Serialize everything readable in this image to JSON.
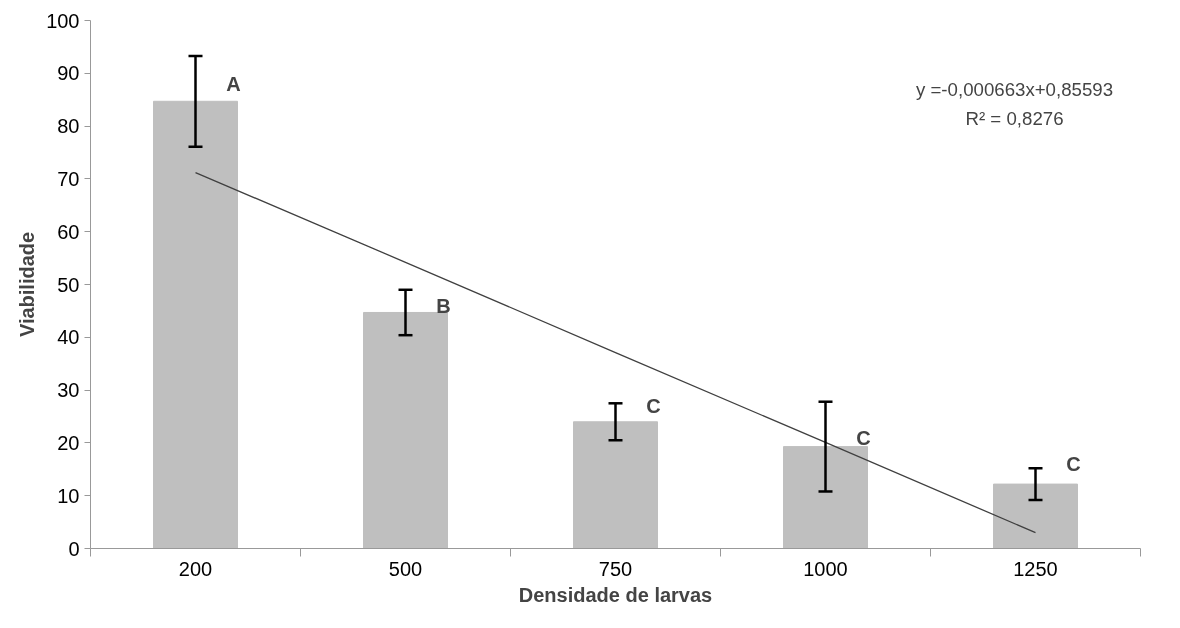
{
  "chart_data": {
    "type": "bar",
    "xlabel": "Densidade de larvas",
    "ylabel": "Viabilidade",
    "categories": [
      "200",
      "500",
      "750",
      "1000",
      "1250"
    ],
    "series": [
      {
        "color": "#bfbfbf",
        "values": [
          84.7,
          44.7,
          24,
          19.3,
          12.2
        ],
        "errors": [
          8.6,
          4.3,
          3.5,
          8.5,
          3
        ]
      },
      {
        "type": "line",
        "color": "#404040",
        "values": [
          71.2,
          54.2,
          37.1,
          20.1,
          3
        ]
      }
    ],
    "ylim": [
      0,
      100
    ],
    "yticks": [
      0,
      10,
      20,
      30,
      40,
      50,
      60,
      70,
      80,
      90,
      100
    ],
    "grid": false,
    "annotations": [
      {
        "text": "A",
        "x": "200",
        "y": 88
      },
      {
        "text": "B",
        "x": "500",
        "y": 46
      },
      {
        "text": "C",
        "x": "750",
        "y": 27
      },
      {
        "text": "C",
        "x": "1000",
        "y": 21
      },
      {
        "text": "C",
        "x": "1250",
        "y": 16
      },
      "y =-0,000663x+0,85593",
      "R² = 0,8276"
    ]
  }
}
